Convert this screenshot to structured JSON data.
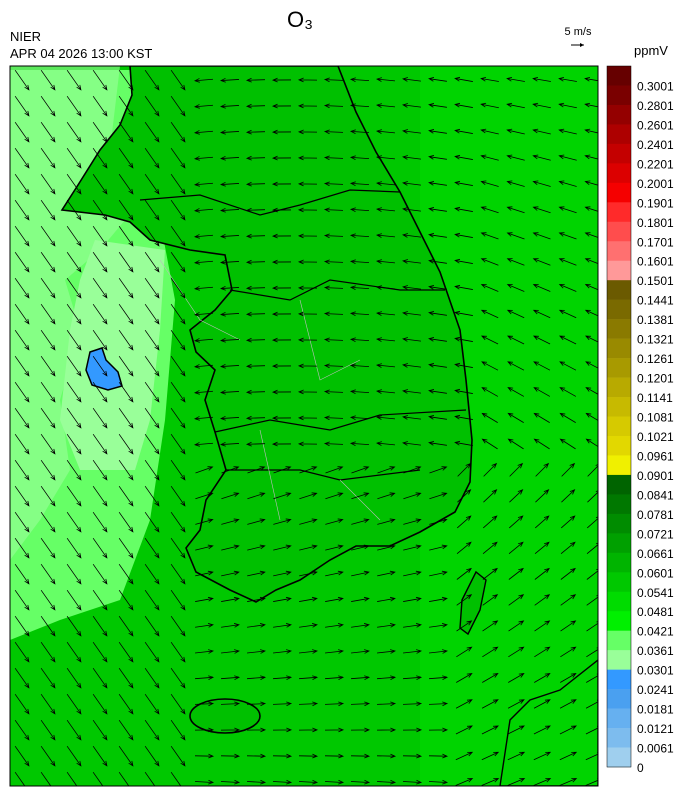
{
  "header": {
    "title": "O₃",
    "agency": "NIER",
    "timestamp": "APR 04 2026 13:00 KST",
    "vector_scale": "5 m/s",
    "unit": "ppmV"
  },
  "colorbar": {
    "labels": [
      0.3001,
      0.2801,
      0.2601,
      0.2401,
      0.2201,
      0.2001,
      0.1901,
      0.1801,
      0.1701,
      0.1601,
      0.1501,
      0.1441,
      0.1381,
      0.1321,
      0.1261,
      0.1201,
      0.1141,
      0.1081,
      0.1021,
      0.0961,
      0.0901,
      0.0841,
      0.0781,
      0.0721,
      0.0661,
      0.0601,
      0.0541,
      0.0481,
      0.0421,
      0.0361,
      0.0301,
      0.0241,
      0.0181,
      0.0121,
      0.0061,
      0
    ],
    "colors": [
      "#660000",
      "#7a0000",
      "#940000",
      "#ad0000",
      "#c40000",
      "#dc0000",
      "#f50000",
      "#ff2a2a",
      "#ff4d4d",
      "#ff7070",
      "#ff9999",
      "#6b5a00",
      "#7a6a00",
      "#8a7a00",
      "#998a00",
      "#a89a00",
      "#b8aa00",
      "#c7ba00",
      "#d6ca00",
      "#e2d800",
      "#f0f000",
      "#006400",
      "#007800",
      "#008c00",
      "#00a000",
      "#00b400",
      "#00c800",
      "#00dc00",
      "#00f000",
      "#66ff66",
      "#99ff99",
      "#3399ff",
      "#4aa0f0",
      "#66b0f0",
      "#7dbcee",
      "#9fcfee"
    ]
  }
}
